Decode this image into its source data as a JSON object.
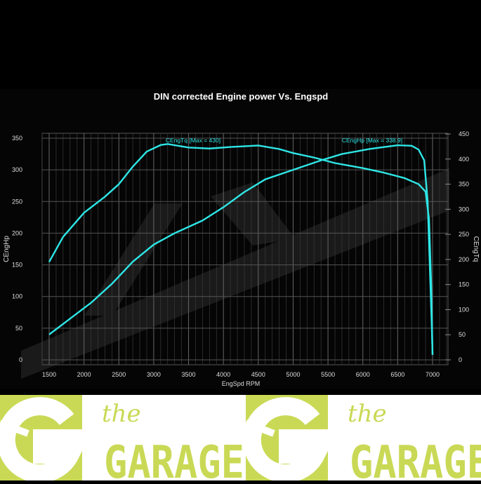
{
  "chart_data": {
    "type": "line",
    "title": "DIN corrected Engine power Vs. Engspd",
    "xlabel": "EngSpd RPM",
    "ylabel": "CEngHp",
    "y2label": "CEngTq",
    "xlim": [
      1000,
      7300
    ],
    "ylim": [
      0,
      350
    ],
    "y2lim": [
      0,
      450
    ],
    "xticks": [
      1500,
      2000,
      2500,
      3000,
      3500,
      4000,
      4500,
      5000,
      5500,
      6000,
      6500,
      7000
    ],
    "yticks": [
      0,
      50,
      100,
      150,
      200,
      250,
      300,
      350
    ],
    "y2ticks": [
      0,
      50,
      100,
      150,
      200,
      250,
      300,
      350,
      400,
      450
    ],
    "grid": true,
    "series": [
      {
        "name": "CEngHp",
        "axis": "left",
        "label": "CEngHp [Max = 338.9]",
        "color": "#2ee6e6",
        "x": [
          1500,
          1800,
          2100,
          2400,
          2700,
          3000,
          3300,
          3700,
          4000,
          4300,
          4600,
          5000,
          5400,
          5700,
          6100,
          6500,
          6700,
          6800,
          6880,
          6930,
          6960,
          6990,
          7000
        ],
        "y": [
          40,
          65,
          90,
          120,
          155,
          182,
          200,
          220,
          241,
          265,
          285,
          300,
          315,
          325,
          333,
          338.9,
          338,
          332,
          315,
          250,
          150,
          50,
          8
        ]
      },
      {
        "name": "CEngTq",
        "axis": "right",
        "label": "CEngTq [Max = 430]",
        "color": "#2ee6e6",
        "x": [
          1500,
          1700,
          2000,
          2300,
          2500,
          2700,
          2900,
          3100,
          3200,
          3500,
          3800,
          4100,
          4500,
          4800,
          5000,
          5300,
          5600,
          6000,
          6300,
          6600,
          6800,
          6900,
          6950,
          6980,
          7000
        ],
        "y": [
          195,
          245,
          293,
          325,
          350,
          385,
          415,
          428,
          430,
          423,
          421,
          424,
          427,
          420,
          412,
          403,
          392,
          382,
          373,
          362,
          350,
          335,
          280,
          150,
          10
        ]
      }
    ]
  },
  "logo": {
    "small_text": "the",
    "big_text": "GARAGE",
    "color": "#c9d955"
  }
}
